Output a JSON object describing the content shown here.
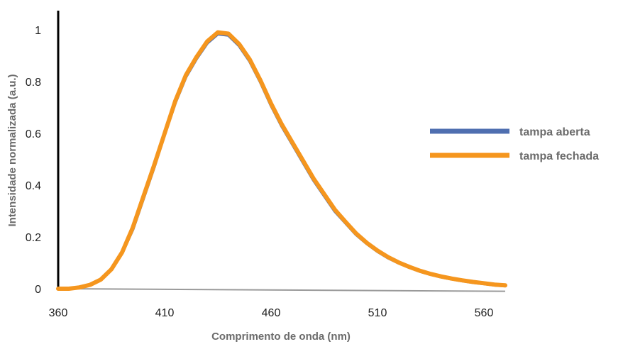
{
  "chart_data": {
    "type": "line",
    "title": "",
    "xlabel": "Comprimento de onda (nm)",
    "ylabel": "Intensidade normalizada (a.u.)",
    "xlim": [
      360,
      570
    ],
    "ylim": [
      0,
      1
    ],
    "x_ticks": [
      "360",
      "410",
      "460",
      "510",
      "560"
    ],
    "y_ticks": [
      "0",
      "0.2",
      "0.4",
      "0.6",
      "0.8",
      "1"
    ],
    "grid": false,
    "legend_position": "right",
    "x": [
      360,
      365,
      370,
      375,
      380,
      385,
      390,
      395,
      400,
      405,
      410,
      415,
      420,
      425,
      430,
      435,
      440,
      445,
      450,
      455,
      460,
      465,
      470,
      475,
      480,
      485,
      490,
      495,
      500,
      505,
      510,
      515,
      520,
      525,
      530,
      535,
      540,
      545,
      550,
      555,
      560,
      565,
      570
    ],
    "series": [
      {
        "name": "tampa aberta",
        "color": "#4f6fb0",
        "values": [
          0.0,
          0.0,
          0.005,
          0.015,
          0.035,
          0.075,
          0.14,
          0.23,
          0.35,
          0.47,
          0.6,
          0.72,
          0.82,
          0.89,
          0.95,
          0.985,
          0.98,
          0.94,
          0.88,
          0.8,
          0.71,
          0.63,
          0.56,
          0.49,
          0.42,
          0.36,
          0.3,
          0.255,
          0.21,
          0.175,
          0.145,
          0.12,
          0.1,
          0.083,
          0.068,
          0.056,
          0.046,
          0.038,
          0.031,
          0.025,
          0.02,
          0.015,
          0.012
        ]
      },
      {
        "name": "tampa fechada",
        "color": "#f5961e",
        "values": [
          0.0,
          0.0,
          0.005,
          0.015,
          0.035,
          0.075,
          0.14,
          0.235,
          0.355,
          0.475,
          0.6,
          0.725,
          0.825,
          0.895,
          0.955,
          0.99,
          0.985,
          0.945,
          0.885,
          0.805,
          0.715,
          0.635,
          0.565,
          0.495,
          0.425,
          0.365,
          0.305,
          0.258,
          0.213,
          0.177,
          0.147,
          0.122,
          0.101,
          0.084,
          0.069,
          0.057,
          0.047,
          0.039,
          0.032,
          0.026,
          0.021,
          0.016,
          0.013
        ]
      }
    ],
    "baseline": {
      "color": "#9a9a9a",
      "from": [
        360,
        0
      ],
      "to": [
        570,
        -0.01
      ]
    }
  }
}
